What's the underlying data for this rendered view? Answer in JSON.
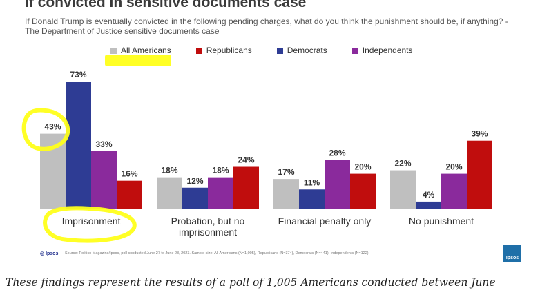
{
  "header": {
    "title": "if convicted in sensitive documents case",
    "subtitle": "If Donald Trump  is eventually convicted in the following pending charges, what do you think the punishment  should be, if anything? - The  Department  of Justice sensitive documents  case"
  },
  "footer": {
    "source_logo": "Ipsos",
    "source_note": "Source:  Politico Magazine/Ipsos, poll conducted June 27 to June 28, 2023. Sample size: All Americans (N=1,005), Republicans (N=374), Democrats (N=441), Independents (N=122)",
    "logo_text": "Ipsos",
    "caption": "These findings represent the results of a poll of 1,005 Americans conducted between June"
  },
  "chart_data": {
    "type": "bar",
    "title": "if convicted in sensitive documents case",
    "xlabel": "",
    "ylabel": "",
    "ylim": [
      0,
      80
    ],
    "grid": false,
    "legend_position": "top",
    "categories": [
      "Imprisonment",
      "Probation, but no imprisonment",
      "Financial penalty only",
      "No punishment"
    ],
    "series": [
      {
        "name": "All Americans",
        "color": "#bfbfbf",
        "values": [
          43,
          18,
          17,
          22
        ]
      },
      {
        "name": "Democrats",
        "color": "#2e3c94",
        "values": [
          73,
          12,
          11,
          4
        ]
      },
      {
        "name": "Independents",
        "color": "#8a2a9c",
        "values": [
          33,
          18,
          28,
          20
        ]
      },
      {
        "name": "Republicans",
        "color": "#c00d0d",
        "values": [
          16,
          24,
          20,
          39
        ]
      }
    ],
    "legend_order": [
      "All Americans",
      "Republicans",
      "Democrats",
      "Independents"
    ],
    "value_suffix": "%",
    "annotation_color": "#ffff1a"
  }
}
